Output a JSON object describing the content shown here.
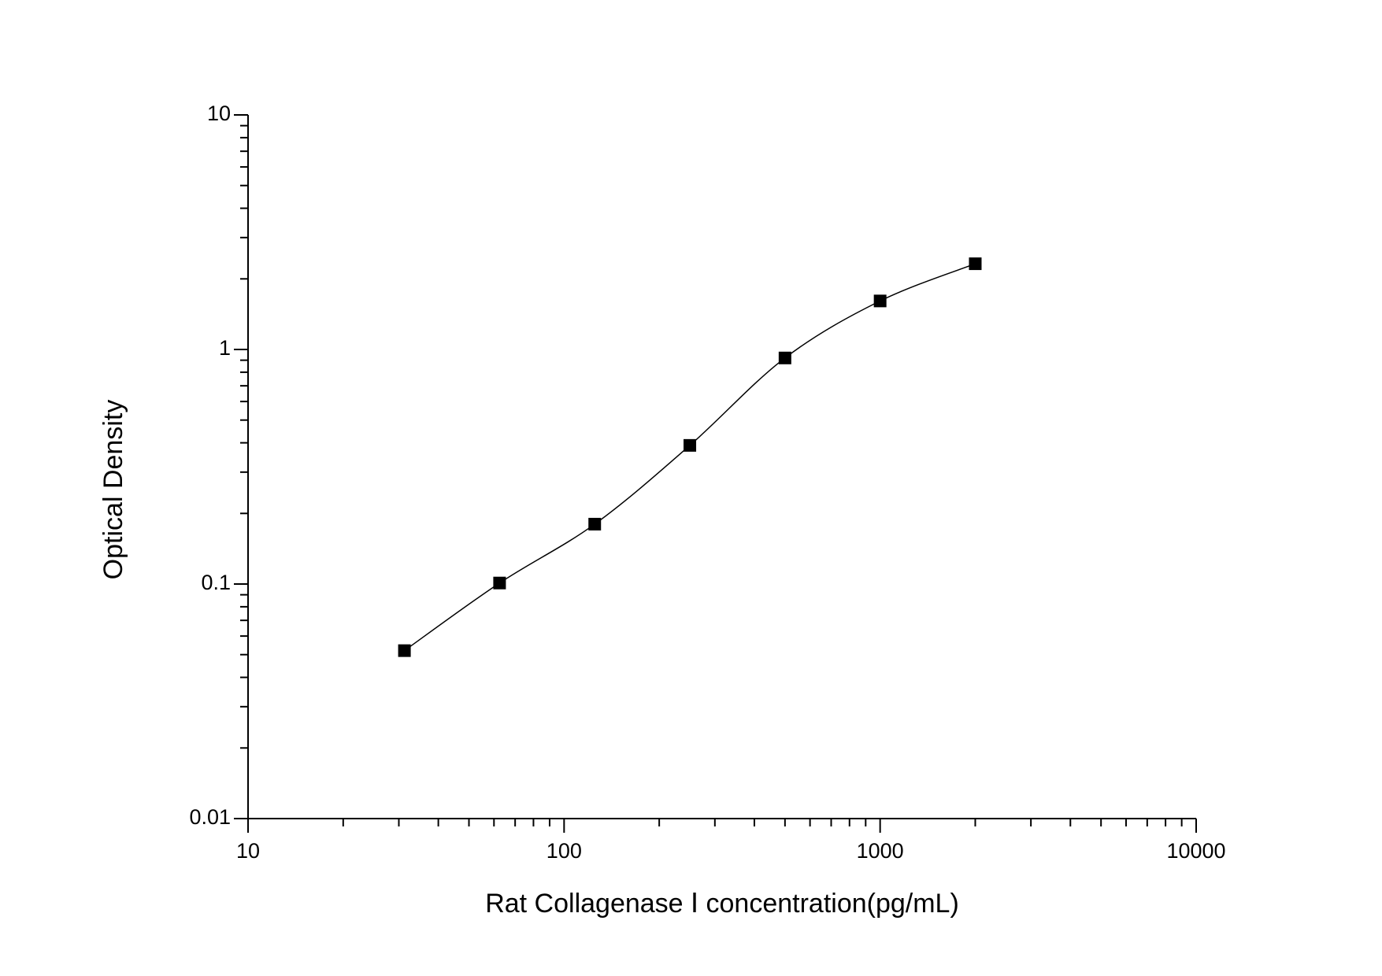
{
  "chart_data": {
    "type": "scatter",
    "xlabel": "Rat Collagenase Ⅰ concentration(pg/mL)",
    "ylabel": "Optical Density",
    "xscale": "log",
    "yscale": "log",
    "xlim": [
      10,
      10000
    ],
    "xticks": [
      10,
      100,
      1000,
      10000
    ],
    "ylim": [
      0.01,
      10
    ],
    "yticks": [
      0.01,
      0.1,
      1,
      10
    ],
    "fit_line": true,
    "color": "#000000",
    "x": [
      31.25,
      62.5,
      125,
      250,
      500,
      1000,
      2000
    ],
    "values": [
      0.052,
      0.101,
      0.18,
      0.39,
      0.92,
      1.61,
      2.32
    ]
  }
}
